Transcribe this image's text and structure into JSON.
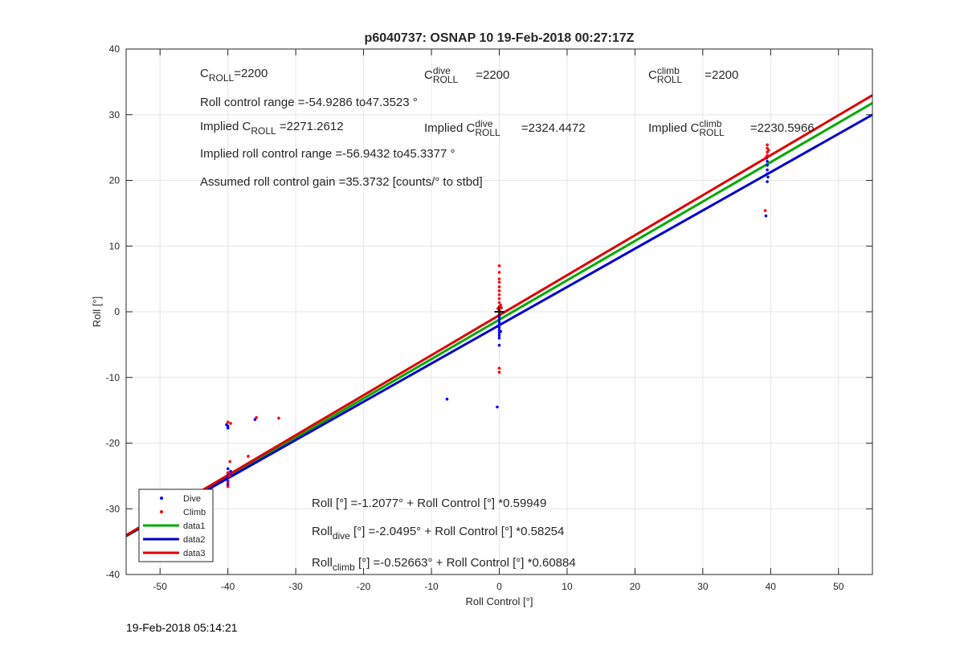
{
  "chart_data": {
    "type": "scatter",
    "title": "p6040737: OSNAP 10 19-Feb-2018 00:27:17Z",
    "xlabel": "Roll Control [°]",
    "ylabel": "Roll [°]",
    "xlim": [
      -55,
      55
    ],
    "ylim": [
      -40,
      40
    ],
    "xticks": [
      -50,
      -40,
      -30,
      -20,
      -10,
      0,
      10,
      20,
      30,
      40,
      50
    ],
    "yticks": [
      -40,
      -30,
      -20,
      -10,
      0,
      10,
      20,
      30,
      40
    ],
    "grid": true,
    "legend_location": "bottom-left",
    "colors": {
      "dive": "#0000ff",
      "climb": "#ff0000",
      "data1": "#00aa00",
      "data2": "#0000cc",
      "data3": "#dd0000",
      "marker": "#000000"
    },
    "series": [
      {
        "name": "Dive",
        "kind": "points",
        "points": [
          [
            -40,
            -25.2
          ],
          [
            -40,
            -25.8
          ],
          [
            -40,
            -26.3
          ],
          [
            -40,
            -24.6
          ],
          [
            -40,
            -23.9
          ],
          [
            -40,
            -17.4
          ],
          [
            -40,
            -17.7
          ],
          [
            -40.2,
            -17.2
          ],
          [
            -39.6,
            -24.3
          ],
          [
            -39.8,
            -25.1
          ],
          [
            -36,
            -16.4
          ],
          [
            -7.7,
            -13.3
          ],
          [
            -0.3,
            -14.5
          ],
          [
            0,
            -5.1
          ],
          [
            0,
            -4.0
          ],
          [
            0,
            -3.6
          ],
          [
            0,
            -3.2
          ],
          [
            0,
            -2.8
          ],
          [
            0,
            -2.4
          ],
          [
            0,
            -2.0
          ],
          [
            0,
            -1.6
          ],
          [
            0,
            -1.2
          ],
          [
            0,
            -0.8
          ],
          [
            0,
            -0.4
          ],
          [
            0.2,
            -3.0
          ],
          [
            -0.2,
            -2.2
          ],
          [
            39.3,
            14.6
          ],
          [
            39.5,
            19.8
          ],
          [
            39.5,
            21.0
          ],
          [
            39.5,
            21.6
          ],
          [
            39.5,
            22.3
          ],
          [
            39.5,
            22.9
          ],
          [
            39.4,
            23.4
          ],
          [
            39.6,
            20.5
          ]
        ]
      },
      {
        "name": "Climb",
        "kind": "points",
        "points": [
          [
            -40,
            -26.6
          ],
          [
            -40,
            -26.0
          ],
          [
            -39.8,
            -25.0
          ],
          [
            -40,
            -24.5
          ],
          [
            -39.7,
            -22.8
          ],
          [
            -40,
            -16.8
          ],
          [
            -39.6,
            -17.0
          ],
          [
            -35.8,
            -16.1
          ],
          [
            -32.5,
            -16.2
          ],
          [
            -37.0,
            -22.0
          ],
          [
            0,
            7.0
          ],
          [
            0,
            6.0
          ],
          [
            0,
            5.0
          ],
          [
            0,
            4.5
          ],
          [
            0,
            3.8
          ],
          [
            0,
            3.2
          ],
          [
            0,
            2.6
          ],
          [
            0,
            2.0
          ],
          [
            0,
            1.4
          ],
          [
            0,
            0.8
          ],
          [
            0,
            0.2
          ],
          [
            0,
            -0.4
          ],
          [
            0.2,
            1.0
          ],
          [
            -0.2,
            0.5
          ],
          [
            0,
            -8.6
          ],
          [
            0,
            -9.2
          ],
          [
            0.3,
            0.6
          ],
          [
            39.2,
            15.4
          ],
          [
            39.5,
            23.8
          ],
          [
            39.5,
            24.3
          ],
          [
            39.5,
            24.9
          ],
          [
            39.5,
            25.4
          ],
          [
            39.7,
            24.6
          ],
          [
            39.3,
            23.5
          ]
        ]
      },
      {
        "name": "data1",
        "kind": "line",
        "x": [
          -55,
          55
        ],
        "y": [
          -34.179,
          31.765
        ]
      },
      {
        "name": "data2",
        "kind": "line",
        "x": [
          -55,
          55
        ],
        "y": [
          -34.089,
          29.99
        ]
      },
      {
        "name": "data3",
        "kind": "line",
        "x": [
          -55,
          55
        ],
        "y": [
          -34.013,
          32.96
        ]
      }
    ],
    "annotations": [
      {
        "base": "C",
        "sub": "ROLL",
        "tail": "=2200"
      },
      {
        "base": "C",
        "sup": "dive",
        "sub": "ROLL",
        "tail": "=2200"
      },
      {
        "base": "C",
        "sup": "climb",
        "sub": "ROLL",
        "tail": "=2200"
      },
      {
        "text": "Roll control range =-54.9286 to47.3523 °"
      },
      {
        "base": "Implied C",
        "sub": "ROLL",
        "tail": " =2271.2612"
      },
      {
        "base": "Implied C",
        "sup": "dive",
        "sub": "ROLL",
        "tail": " =2324.4472"
      },
      {
        "base": "Implied C",
        "sup": "climb",
        "sub": "ROLL",
        "tail": " =2230.5966"
      },
      {
        "text": "Implied roll control range =-56.9432 to45.3377 °"
      },
      {
        "text": "Assumed roll control gain =35.3732 [counts/° to stbd]"
      },
      {
        "text": "Roll [°] =-1.2077° + Roll Control [°] *0.59949"
      },
      {
        "base": "Roll",
        "sub": "dive",
        "tail": " [°] =-2.0495° + Roll Control [°] *0.58254"
      },
      {
        "base": "Roll",
        "sub": "climb",
        "tail": " [°] =-0.52663° + Roll Control [°] *0.60884"
      }
    ],
    "legend": [
      "Dive",
      "Climb",
      "data1",
      "data2",
      "data3"
    ]
  },
  "footer": {
    "timestamp": "19-Feb-2018 05:14:21"
  }
}
